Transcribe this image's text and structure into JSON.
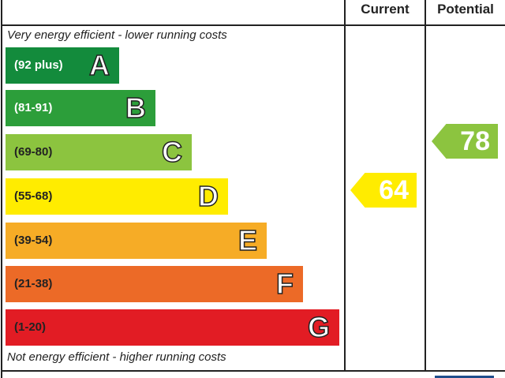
{
  "chart_data": {
    "type": "bar",
    "header": {
      "current": "Current",
      "potential": "Potential"
    },
    "top_note": "Very energy efficient - lower running costs",
    "bottom_note": "Not energy efficient - higher running costs",
    "bands": [
      {
        "range": "(92 plus)",
        "letter": "A",
        "color": "#138b3c",
        "text_color": "#ffffff"
      },
      {
        "range": "(81-91)",
        "letter": "B",
        "color": "#2c9e3a",
        "text_color": "#ffffff"
      },
      {
        "range": "(69-80)",
        "letter": "C",
        "color": "#8cc43f",
        "text_color": "#222222"
      },
      {
        "range": "(55-68)",
        "letter": "D",
        "color": "#ffec00",
        "text_color": "#222222"
      },
      {
        "range": "(39-54)",
        "letter": "E",
        "color": "#f6ac26",
        "text_color": "#222222"
      },
      {
        "range": "(21-38)",
        "letter": "F",
        "color": "#ec6a27",
        "text_color": "#222222"
      },
      {
        "range": "(1-20)",
        "letter": "G",
        "color": "#e21c24",
        "text_color": "#222222"
      }
    ],
    "current": {
      "value": 64,
      "band": "D",
      "color": "#ffec00"
    },
    "potential": {
      "value": 78,
      "band": "C",
      "color": "#8cc43f"
    }
  }
}
